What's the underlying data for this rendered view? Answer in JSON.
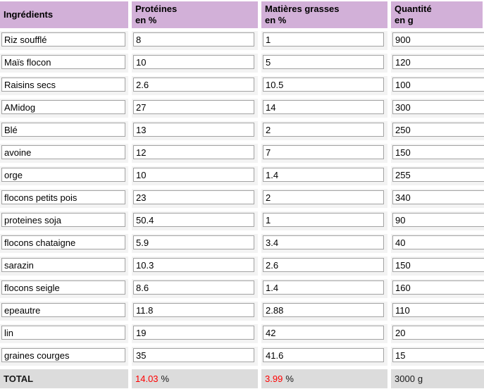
{
  "table": {
    "headers": [
      {
        "label": "Ingrédients",
        "sub": ""
      },
      {
        "label": "Protéines",
        "sub": "en %"
      },
      {
        "label": "Matières grasses",
        "sub": "en %"
      },
      {
        "label": "Quantité",
        "sub": "en g"
      }
    ],
    "columns": [
      "ingredient",
      "protein",
      "fat",
      "quantity"
    ],
    "rows": [
      {
        "ingredient": "Riz soufflé",
        "protein": "8",
        "fat": "1",
        "quantity": "900"
      },
      {
        "ingredient": "Maïs flocon",
        "protein": "10",
        "fat": "5",
        "quantity": "120"
      },
      {
        "ingredient": "Raisins secs",
        "protein": "2.6",
        "fat": "10.5",
        "quantity": "100"
      },
      {
        "ingredient": "AMidog",
        "protein": "27",
        "fat": "14",
        "quantity": "300"
      },
      {
        "ingredient": "Blé",
        "protein": "13",
        "fat": "2",
        "quantity": "250"
      },
      {
        "ingredient": "avoine",
        "protein": "12",
        "fat": "7",
        "quantity": "150"
      },
      {
        "ingredient": "orge",
        "protein": "10",
        "fat": "1.4",
        "quantity": "255"
      },
      {
        "ingredient": "flocons petits pois",
        "protein": "23",
        "fat": "2",
        "quantity": "340"
      },
      {
        "ingredient": "proteines soja",
        "protein": "50.4",
        "fat": "1",
        "quantity": "90"
      },
      {
        "ingredient": "flocons chataigne",
        "protein": "5.9",
        "fat": "3.4",
        "quantity": "40"
      },
      {
        "ingredient": "sarazin",
        "protein": "10.3",
        "fat": "2.6",
        "quantity": "150"
      },
      {
        "ingredient": "flocons seigle",
        "protein": "8.6",
        "fat": "1.4",
        "quantity": "160"
      },
      {
        "ingredient": "epeautre",
        "protein": "11.8",
        "fat": "2.88",
        "quantity": "110"
      },
      {
        "ingredient": "lin",
        "protein": "19",
        "fat": "42",
        "quantity": "20"
      },
      {
        "ingredient": "graines courges",
        "protein": "35",
        "fat": "41.6",
        "quantity": "15"
      }
    ],
    "total": {
      "label": "TOTAL",
      "protein_value": "14.03",
      "protein_unit": "%",
      "fat_value": "3.99",
      "fat_unit": "%",
      "quantity_value": "3000",
      "quantity_unit": "g"
    }
  },
  "colors": {
    "header_bg": "#d2b0d8",
    "row_bg": "#f3f3f3",
    "total_bg": "#dcdcdc",
    "total_value": "#ff0000"
  }
}
